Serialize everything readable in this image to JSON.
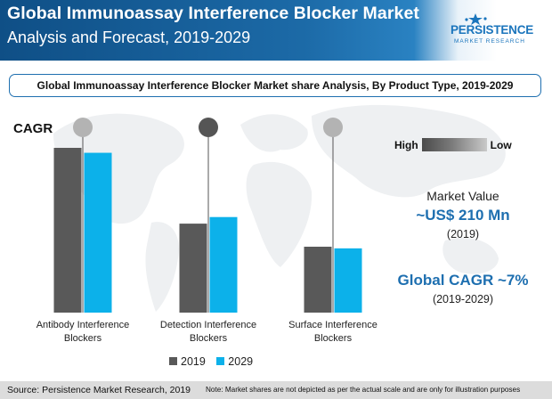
{
  "header": {
    "title_line1": "Global Immunoassay Interference Blocker Market",
    "title_line2": "Analysis and Forecast, 2019-2029"
  },
  "logo": {
    "text": "PERSISTENCE",
    "subtext": "MARKET RESEARCH"
  },
  "subtitle": "Global Immunoassay Interference Blocker Market share Analysis, By Product Type, 2019-2029",
  "cagr_label": "CAGR",
  "scale": {
    "high": "High",
    "low": "Low"
  },
  "market_value": {
    "label": "Market Value",
    "value": "~US$ 210 Mn",
    "year": "(2019)"
  },
  "global_cagr": {
    "value": "Global CAGR ~7%",
    "period": "(2019-2029)"
  },
  "colors": {
    "c2019": "#595959",
    "c2029": "#0cb1ea",
    "accent": "#1e6fb0"
  },
  "chart_data": {
    "type": "bar",
    "categories": [
      "Antibody Interference Blockers",
      "Detection Interference Blockers",
      "Surface Interference Blockers"
    ],
    "category_lines": [
      [
        "Antibody Interference",
        "Blockers"
      ],
      [
        "Detection Interference",
        "Blockers"
      ],
      [
        "Surface Interference",
        "Blockers"
      ]
    ],
    "series": [
      {
        "name": "2019",
        "values": [
          100,
          54,
          40
        ]
      },
      {
        "name": "2029",
        "values": [
          97,
          58,
          39
        ]
      }
    ],
    "cagr_indicators": [
      "low",
      "high",
      "low"
    ],
    "ylim": [
      0,
      100
    ],
    "grid": false,
    "legend": "bottom-center"
  },
  "footer": {
    "source": "Source: Persistence Market Research, 2019",
    "note": "Note: Market shares are not depicted as per the actual scale and are only for illustration purposes"
  }
}
